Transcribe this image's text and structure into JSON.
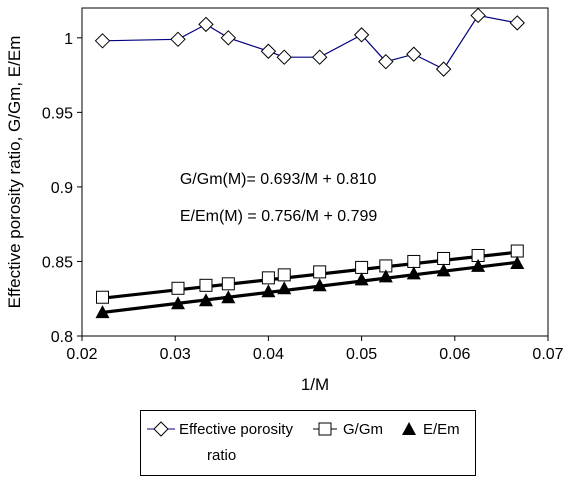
{
  "chart_data": {
    "type": "scatter",
    "xlabel": "1/M",
    "ylabel": "Effective porosity ratio, G/Gm, E/Em",
    "xlim": [
      0.02,
      0.07
    ],
    "ylim": [
      0.8,
      1.02
    ],
    "xticks": [
      0.02,
      0.03,
      0.04,
      0.05,
      0.06,
      0.07
    ],
    "xtick_labels": [
      "0.02",
      "0.03",
      "0.04",
      "0.05",
      "0.06",
      "0.07"
    ],
    "yticks": [
      0.8,
      0.85,
      0.9,
      0.95,
      1.0
    ],
    "ytick_labels": [
      "0.8",
      "0.85",
      "0.9",
      "0.95",
      "1"
    ],
    "grid": false,
    "legend_position": "bottom",
    "annotations": [
      {
        "text": "G/Gm(M)= 0.693/M + 0.810",
        "x": 0.0305,
        "y": 0.902
      },
      {
        "text": "E/Em(M) = 0.756/M + 0.799",
        "x": 0.0305,
        "y": 0.877
      }
    ],
    "series": [
      {
        "name": "Effective porosity ratio",
        "marker": "diamond-open",
        "connected": true,
        "color": "#000080",
        "x": [
          0.0222,
          0.0303,
          0.0333,
          0.0357,
          0.04,
          0.0417,
          0.0455,
          0.05,
          0.0526,
          0.0556,
          0.0588,
          0.0625,
          0.0667
        ],
        "y": [
          0.998,
          0.999,
          1.009,
          1.0,
          0.991,
          0.987,
          0.987,
          1.002,
          0.984,
          0.989,
          0.979,
          1.015,
          1.01
        ]
      },
      {
        "name": "G/Gm",
        "marker": "square-open",
        "connected": false,
        "color": "#000000",
        "fit": {
          "slope": 0.693,
          "intercept": 0.81
        },
        "x": [
          0.0222,
          0.0303,
          0.0333,
          0.0357,
          0.04,
          0.0417,
          0.0455,
          0.05,
          0.0526,
          0.0556,
          0.0588,
          0.0625,
          0.0667
        ],
        "y": [
          0.826,
          0.832,
          0.834,
          0.835,
          0.839,
          0.841,
          0.843,
          0.846,
          0.847,
          0.85,
          0.852,
          0.854,
          0.857
        ]
      },
      {
        "name": "E/Em",
        "marker": "triangle-filled",
        "connected": false,
        "color": "#000000",
        "fit": {
          "slope": 0.756,
          "intercept": 0.799
        },
        "x": [
          0.0222,
          0.0303,
          0.0333,
          0.0357,
          0.04,
          0.0417,
          0.0455,
          0.05,
          0.0526,
          0.0556,
          0.0588,
          0.0625,
          0.0667
        ],
        "y": [
          0.816,
          0.822,
          0.824,
          0.826,
          0.83,
          0.832,
          0.834,
          0.838,
          0.84,
          0.842,
          0.844,
          0.847,
          0.849
        ]
      }
    ],
    "legend": {
      "series0_line1": "Effective porosity",
      "series0_line2": "ratio",
      "series1": "G/Gm",
      "series2": "E/Em"
    }
  }
}
